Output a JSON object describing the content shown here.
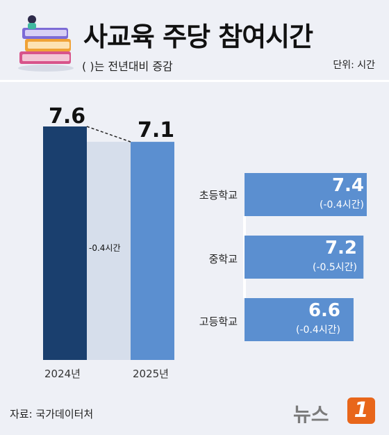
{
  "header": {
    "title": "사교육 주당 참여시간",
    "subtitle": "(   )는 전년대비 증감",
    "unit": "단위: 시간"
  },
  "source": "자료: 국가데이터처",
  "brand": {
    "logo_text": "뉴스",
    "logo_mark": "1",
    "accent": "#e8661a",
    "primary_dark": "#1a3f6e",
    "primary_light": "#5b8fd0",
    "pale": "#d6deeb"
  },
  "chart_data": [
    {
      "type": "bar",
      "categories": [
        "2024년",
        "2025년"
      ],
      "values": [
        7.6,
        7.1
      ],
      "value_labels": [
        "7.6",
        "7.1"
      ],
      "change_label": "-0.4시간",
      "ylim": [
        0,
        7.6
      ]
    },
    {
      "type": "bar",
      "orientation": "horizontal",
      "categories": [
        "초등학교",
        "중학교",
        "고등학교"
      ],
      "values": [
        7.4,
        7.2,
        6.6
      ],
      "value_labels": [
        "7.4",
        "7.2",
        "6.6"
      ],
      "change_labels": [
        "(-0.4시간)",
        "(-0.5시간)",
        "(-0.4시간)"
      ],
      "xlim": [
        0,
        7.4
      ]
    }
  ]
}
